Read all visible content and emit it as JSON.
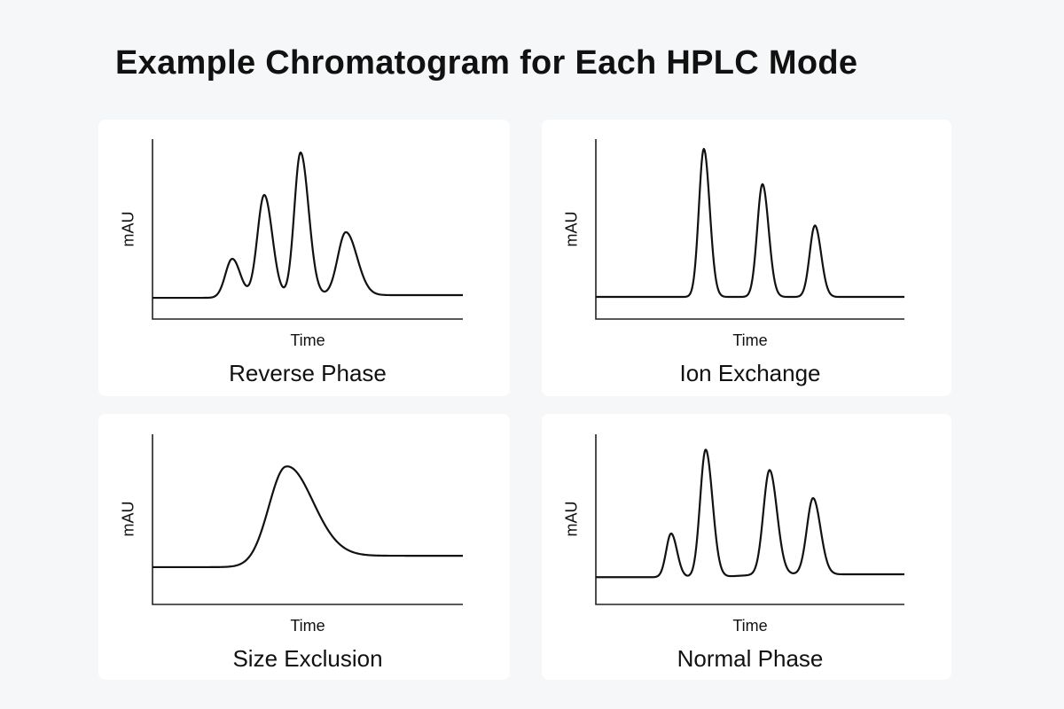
{
  "title": "Example Chromatogram for Each HPLC Mode",
  "chart_data": [
    {
      "type": "line",
      "title": "Reverse Phase",
      "xlabel": "Time",
      "ylabel": "mAU",
      "xlim": [
        0,
        100
      ],
      "ylim": [
        0,
        100
      ],
      "grid": false,
      "line_color": "#111111",
      "baseline": [
        11.8,
        13.3
      ],
      "peaks": [
        {
          "time": 25.7,
          "value": 33.5,
          "sigma_left": 2.2,
          "sigma_right": 2.6
        },
        {
          "time": 36.0,
          "value": 69.0,
          "sigma_left": 2.2,
          "sigma_right": 2.6
        },
        {
          "time": 47.7,
          "value": 92.6,
          "sigma_left": 2.0,
          "sigma_right": 2.6
        },
        {
          "time": 62.3,
          "value": 48.3,
          "sigma_left": 2.6,
          "sigma_right": 3.6
        }
      ]
    },
    {
      "type": "line",
      "title": "Ion Exchange",
      "xlabel": "Time",
      "ylabel": "mAU",
      "xlim": [
        0,
        100
      ],
      "ylim": [
        0,
        100
      ],
      "grid": false,
      "line_color": "#111111",
      "baseline": [
        12.3,
        12.3
      ],
      "peaks": [
        {
          "time": 35.0,
          "value": 94.6,
          "sigma_left": 1.6,
          "sigma_right": 1.9
        },
        {
          "time": 54.0,
          "value": 75.0,
          "sigma_left": 1.7,
          "sigma_right": 2.0
        },
        {
          "time": 71.0,
          "value": 52.0,
          "sigma_left": 1.7,
          "sigma_right": 2.0
        }
      ]
    },
    {
      "type": "line",
      "title": "Size Exclusion",
      "xlabel": "Time",
      "ylabel": "mAU",
      "xlim": [
        0,
        100
      ],
      "ylim": [
        0,
        100
      ],
      "grid": false,
      "line_color": "#111111",
      "baseline": [
        21.9,
        28.6
      ],
      "peaks": [
        {
          "time": 42.9,
          "value": 81.0,
          "sigma_left": 5.5,
          "sigma_right": 8.5
        }
      ]
    },
    {
      "type": "line",
      "title": "Normal Phase",
      "xlabel": "Time",
      "ylabel": "mAU",
      "xlim": [
        0,
        100
      ],
      "ylim": [
        0,
        100
      ],
      "grid": false,
      "line_color": "#111111",
      "baseline": [
        16.0,
        17.7
      ],
      "peaks": [
        {
          "time": 24.4,
          "value": 41.7,
          "sigma_left": 1.6,
          "sigma_right": 1.9
        },
        {
          "time": 35.6,
          "value": 91.0,
          "sigma_left": 1.8,
          "sigma_right": 2.2
        },
        {
          "time": 56.3,
          "value": 79.0,
          "sigma_left": 2.0,
          "sigma_right": 2.4
        },
        {
          "time": 70.4,
          "value": 62.5,
          "sigma_left": 2.0,
          "sigma_right": 2.4
        }
      ]
    }
  ]
}
